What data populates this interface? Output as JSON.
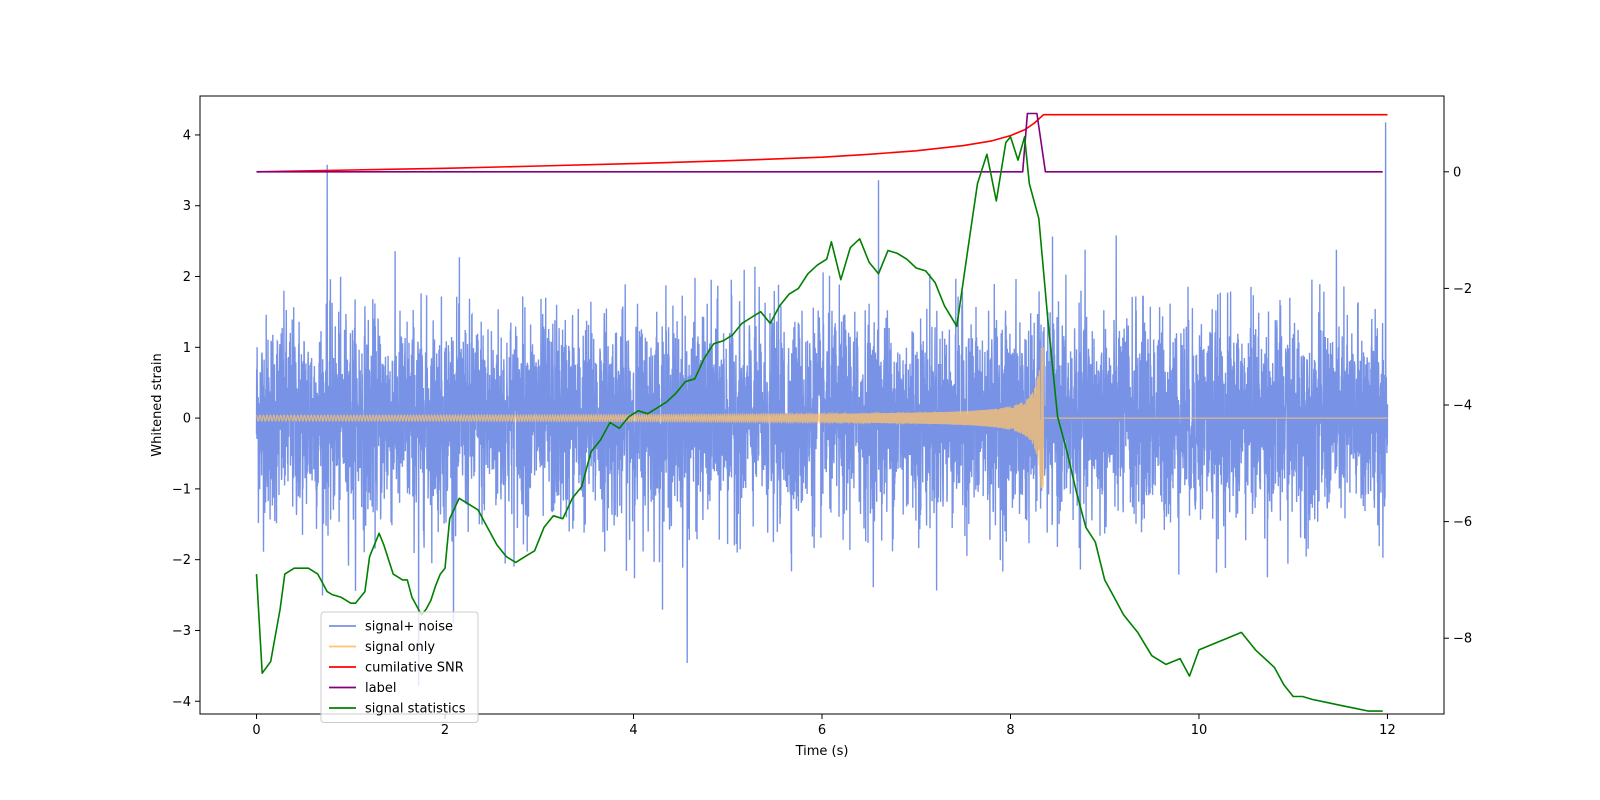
{
  "chart_data": {
    "type": "line",
    "title": "",
    "xlabel": "Time (s)",
    "ylabel": "Whitened strain",
    "xlim": [
      -0.6,
      12.6
    ],
    "ylim": [
      -4.18,
      4.55
    ],
    "y2lim": [
      -9.3,
      1.3
    ],
    "x_ticks": [
      0,
      2,
      4,
      6,
      8,
      10,
      12
    ],
    "y_ticks": [
      -4,
      -3,
      -2,
      -1,
      0,
      1,
      2,
      3,
      4
    ],
    "y2_ticks": [
      -8,
      -6,
      -4,
      -2,
      0
    ],
    "tick_labels": {
      "x": [
        "0",
        "2",
        "4",
        "6",
        "8",
        "10",
        "12"
      ],
      "y": [
        "−4",
        "−3",
        "−2",
        "−1",
        "0",
        "1",
        "2",
        "3",
        "4"
      ],
      "y2": [
        "−8",
        "−6",
        "−4",
        "−2",
        "0"
      ]
    },
    "legend": {
      "position": "lower-left",
      "entries": [
        {
          "label": "signal+ noise",
          "color": "#7893e6"
        },
        {
          "label": "signal only",
          "color": "#ffc36b"
        },
        {
          "label": "cumilative SNR",
          "color": "#ff0000"
        },
        {
          "label": "label",
          "color": "#800080"
        },
        {
          "label": "signal statistics",
          "color": "#008000"
        }
      ]
    },
    "series": [
      {
        "name": "signal+ noise",
        "axis": "left",
        "color": "#7893e6",
        "description": "whitened noise with injected chirp, t = 0 to 12 s",
        "noise_std": 0.72,
        "peaks": [
          [
            0.75,
            3.58
          ],
          [
            1.72,
            -3.78
          ],
          [
            4.57,
            -3.46
          ],
          [
            6.6,
            3.36
          ],
          [
            11.98,
            4.18
          ]
        ]
      },
      {
        "name": "signal only",
        "axis": "left",
        "color": "#ffc36b",
        "description": "chirp growing until merger at t = 8.35 s",
        "x_start": 0,
        "x_merger": 8.35,
        "x_end": 12,
        "peak_amplitude": 1.0
      },
      {
        "name": "cumilative SNR",
        "axis": "right",
        "color": "#ff0000",
        "x": [
          0,
          1,
          2,
          3,
          4,
          5,
          6,
          6.5,
          7,
          7.5,
          7.8,
          8.0,
          8.15,
          8.25,
          8.35,
          12
        ],
        "values": [
          0,
          0.03,
          0.06,
          0.1,
          0.14,
          0.19,
          0.25,
          0.3,
          0.36,
          0.45,
          0.53,
          0.62,
          0.72,
          0.83,
          0.98,
          0.98
        ]
      },
      {
        "name": "label",
        "axis": "right",
        "color": "#800080",
        "x": [
          0,
          8.13,
          8.18,
          8.28,
          8.37,
          11.95
        ],
        "values": [
          0,
          0,
          1,
          1,
          0,
          0
        ]
      },
      {
        "name": "signal statistics",
        "axis": "right",
        "color": "#008000",
        "x": [
          0,
          0.06,
          0.15,
          0.25,
          0.3,
          0.4,
          0.5,
          0.55,
          0.65,
          0.75,
          0.8,
          0.9,
          1.0,
          1.05,
          1.1,
          1.15,
          1.2,
          1.3,
          1.35,
          1.45,
          1.55,
          1.6,
          1.65,
          1.75,
          1.8,
          1.85,
          1.9,
          1.95,
          2.0,
          2.05,
          2.15,
          2.25,
          2.35,
          2.45,
          2.55,
          2.65,
          2.75,
          2.85,
          2.95,
          3.05,
          3.15,
          3.25,
          3.35,
          3.45,
          3.55,
          3.65,
          3.75,
          3.85,
          3.95,
          4.05,
          4.15,
          4.25,
          4.35,
          4.45,
          4.55,
          4.65,
          4.75,
          4.85,
          4.95,
          5.05,
          5.15,
          5.25,
          5.35,
          5.45,
          5.55,
          5.65,
          5.75,
          5.85,
          5.95,
          6.05,
          6.1,
          6.2,
          6.3,
          6.4,
          6.5,
          6.6,
          6.7,
          6.8,
          6.9,
          7.0,
          7.1,
          7.2,
          7.3,
          7.43,
          7.55,
          7.65,
          7.75,
          7.85,
          7.95,
          8.0,
          8.08,
          8.15,
          8.2,
          8.3,
          8.4,
          8.5,
          8.6,
          8.7,
          8.8,
          8.9,
          9.0,
          9.1,
          9.2,
          9.35,
          9.5,
          9.65,
          9.8,
          9.9,
          10.0,
          10.15,
          10.3,
          10.45,
          10.6,
          10.8,
          10.9,
          11.0,
          11.1,
          11.2,
          11.35,
          11.5,
          11.65,
          11.8,
          11.95
        ],
        "values": [
          -6.9,
          -8.6,
          -8.4,
          -7.5,
          -6.9,
          -6.8,
          -6.8,
          -6.8,
          -6.9,
          -7.2,
          -7.25,
          -7.3,
          -7.4,
          -7.4,
          -7.3,
          -7.2,
          -6.6,
          -6.2,
          -6.4,
          -6.9,
          -7.0,
          -7.0,
          -7.3,
          -7.6,
          -7.5,
          -7.35,
          -7.1,
          -6.9,
          -6.8,
          -5.95,
          -5.6,
          -5.7,
          -5.8,
          -6.1,
          -6.4,
          -6.6,
          -6.7,
          -6.6,
          -6.5,
          -6.1,
          -5.9,
          -5.95,
          -5.6,
          -5.4,
          -4.8,
          -4.6,
          -4.3,
          -4.4,
          -4.2,
          -4.1,
          -4.15,
          -4.05,
          -3.95,
          -3.8,
          -3.6,
          -3.55,
          -3.2,
          -2.95,
          -2.9,
          -2.8,
          -2.6,
          -2.5,
          -2.4,
          -2.6,
          -2.3,
          -2.1,
          -2.0,
          -1.75,
          -1.6,
          -1.5,
          -1.2,
          -1.85,
          -1.3,
          -1.15,
          -1.55,
          -1.75,
          -1.35,
          -1.4,
          -1.5,
          -1.65,
          -1.7,
          -1.9,
          -2.3,
          -2.65,
          -1.3,
          -0.2,
          0.3,
          -0.5,
          0.5,
          0.6,
          0.2,
          0.6,
          -0.2,
          -0.8,
          -2.6,
          -4.2,
          -4.8,
          -5.5,
          -6.1,
          -6.35,
          -7.0,
          -7.3,
          -7.6,
          -7.9,
          -8.3,
          -8.45,
          -8.35,
          -8.65,
          -8.2,
          -8.1,
          -8.0,
          -7.9,
          -8.2,
          -8.5,
          -8.8,
          -9.0,
          -9.0,
          -9.05,
          -9.1,
          -9.15,
          -9.2,
          -9.25,
          -9.25
        ]
      }
    ]
  }
}
